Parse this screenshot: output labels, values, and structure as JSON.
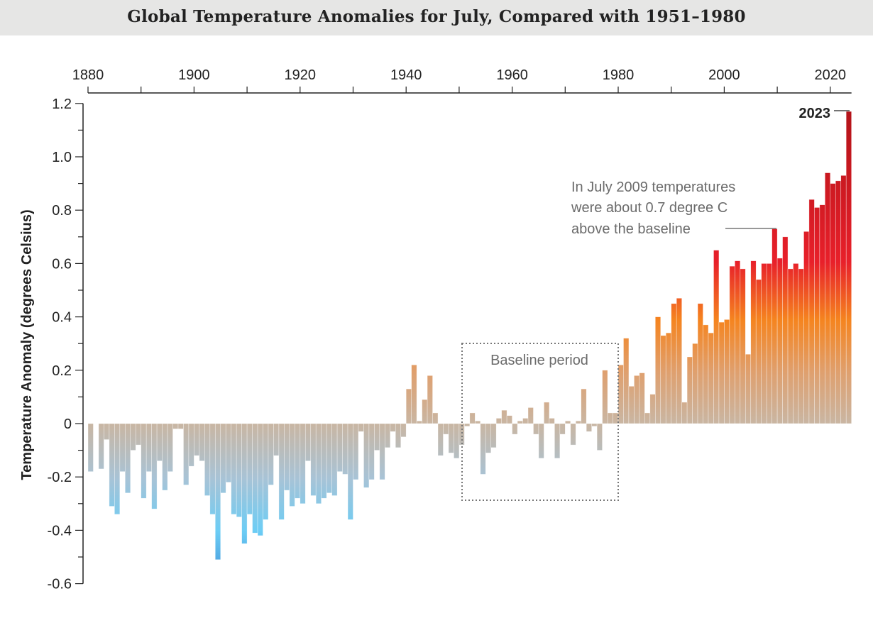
{
  "chart_data": {
    "type": "bar",
    "title": "Global Temperature Anomalies for July, Compared with 1951–1980",
    "xlabel": "",
    "ylabel": "Temperature Anomaly (degrees Celsius)",
    "ylim": [
      -0.6,
      1.2
    ],
    "xlim": [
      1880,
      2023
    ],
    "x_tick_labels": [
      "1880",
      "1900",
      "1920",
      "1940",
      "1960",
      "1980",
      "2000",
      "2020"
    ],
    "y_tick_labels": [
      "1.2",
      "1.0",
      "0.8",
      "0.6",
      "0.4",
      "0.2",
      "0",
      "-0.2",
      "-0.4",
      "-0.6"
    ],
    "x_axis_position": "top",
    "grid": false,
    "start_year": 1880,
    "values": [
      -0.18,
      0.0,
      -0.17,
      -0.06,
      -0.31,
      -0.34,
      -0.18,
      -0.26,
      -0.1,
      -0.08,
      -0.28,
      -0.18,
      -0.32,
      -0.14,
      -0.25,
      -0.18,
      -0.02,
      -0.02,
      -0.23,
      -0.16,
      -0.12,
      -0.14,
      -0.27,
      -0.34,
      -0.51,
      -0.26,
      -0.22,
      -0.34,
      -0.35,
      -0.45,
      -0.34,
      -0.41,
      -0.42,
      -0.36,
      -0.23,
      -0.12,
      -0.36,
      -0.25,
      -0.31,
      -0.28,
      -0.3,
      -0.14,
      -0.27,
      -0.3,
      -0.28,
      -0.26,
      -0.27,
      -0.18,
      -0.19,
      -0.36,
      -0.21,
      -0.03,
      -0.24,
      -0.21,
      -0.1,
      -0.21,
      -0.09,
      -0.03,
      -0.09,
      -0.05,
      0.13,
      0.22,
      0.01,
      0.09,
      0.18,
      0.04,
      -0.12,
      -0.04,
      -0.11,
      -0.13,
      -0.08,
      -0.01,
      0.04,
      0.01,
      -0.19,
      -0.11,
      -0.09,
      0.02,
      0.05,
      0.03,
      -0.04,
      0.01,
      0.02,
      0.06,
      -0.04,
      -0.13,
      0.08,
      0.02,
      -0.13,
      -0.04,
      0.01,
      -0.08,
      0.01,
      0.13,
      -0.03,
      -0.01,
      -0.1,
      0.2,
      0.04,
      0.04,
      0.22,
      0.32,
      0.14,
      0.18,
      0.19,
      0.04,
      0.11,
      0.4,
      0.33,
      0.34,
      0.45,
      0.47,
      0.08,
      0.25,
      0.3,
      0.45,
      0.37,
      0.34,
      0.65,
      0.38,
      0.39,
      0.59,
      0.61,
      0.58,
      0.26,
      0.61,
      0.54,
      0.6,
      0.6,
      0.73,
      0.62,
      0.7,
      0.58,
      0.6,
      0.58,
      0.72,
      0.84,
      0.81,
      0.82,
      0.94,
      0.9,
      0.91,
      0.93,
      1.17
    ],
    "baseline_period": [
      1951,
      1980
    ],
    "annotations": {
      "baseline_label": "Baseline period",
      "note_2009_lines": [
        "In July 2009 temperatures",
        "were about 0.7 degree C",
        "above the baseline"
      ],
      "label_2023": "2023"
    },
    "colors": {
      "cold": "#5ab0e6",
      "neutral": "#c9b6a3",
      "warm": "#f5841f",
      "hot": "#e8202a",
      "hottest": "#b01218",
      "banner": "#e6e6e5"
    }
  }
}
